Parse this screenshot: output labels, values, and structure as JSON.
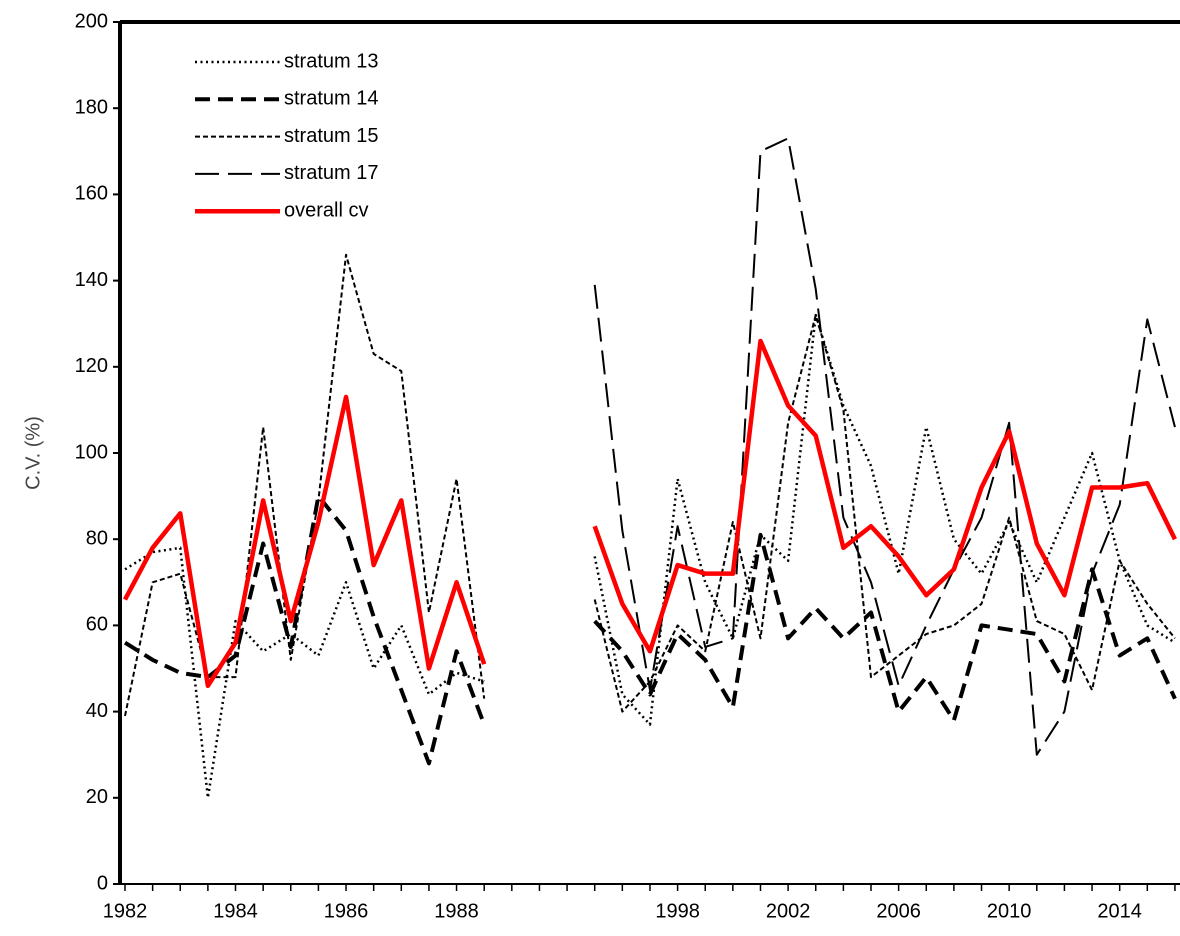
{
  "chart_data": {
    "type": "line",
    "y_label": "C.V. (%)",
    "categories": [
      "1982",
      null,
      null,
      null,
      "1984",
      null,
      null,
      null,
      "1986",
      null,
      null,
      null,
      "1988",
      null,
      null,
      null,
      null,
      null,
      null,
      null,
      "1998",
      null,
      null,
      null,
      "2002",
      null,
      null,
      null,
      "2006",
      null,
      null,
      null,
      "2010",
      null,
      null,
      null,
      "2014",
      null,
      null
    ],
    "series": [
      {
        "name": "stratum 13",
        "color": "#000000",
        "dash": "dotted",
        "values": [
          73,
          77,
          78,
          20,
          61,
          54,
          58,
          53,
          70,
          50,
          60,
          44,
          49,
          47,
          null,
          null,
          null,
          76,
          44,
          37,
          94,
          70,
          57,
          81,
          75,
          132,
          111,
          97,
          72,
          106,
          80,
          72,
          84,
          70,
          85,
          100,
          75,
          60,
          56
        ]
      },
      {
        "name": "stratum 14",
        "color": "#000000",
        "dash": "heavy",
        "values": [
          56,
          52,
          49,
          48,
          53,
          79,
          55,
          90,
          82,
          62,
          45,
          28,
          54,
          37,
          null,
          null,
          null,
          61,
          54,
          44,
          58,
          52,
          41,
          81,
          57,
          64,
          57,
          63,
          40,
          48,
          38,
          60,
          59,
          58,
          47,
          73,
          53,
          57,
          43
        ]
      },
      {
        "name": "stratum 15",
        "color": "#000000",
        "dash": "short",
        "values": [
          39,
          70,
          72,
          48,
          48,
          106,
          52,
          89,
          146,
          123,
          119,
          63,
          94,
          43,
          null,
          null,
          null,
          66,
          40,
          47,
          60,
          54,
          84,
          57,
          107,
          132,
          110,
          48,
          53,
          58,
          60,
          65,
          85,
          61,
          58,
          45,
          75,
          65,
          57
        ]
      },
      {
        "name": "stratum 17",
        "color": "#000000",
        "dash": "long",
        "values": [
          null,
          null,
          null,
          null,
          null,
          null,
          null,
          null,
          null,
          null,
          null,
          null,
          null,
          null,
          null,
          null,
          null,
          139,
          82,
          45,
          83,
          55,
          57,
          170,
          173,
          138,
          85,
          70,
          46,
          60,
          73,
          85,
          107,
          30,
          40,
          72,
          88,
          131,
          106
        ]
      },
      {
        "name": "overall cv",
        "color": "#ff0000",
        "dash": "solid",
        "values": [
          66,
          78,
          86,
          46,
          56,
          89,
          61,
          84,
          113,
          74,
          89,
          50,
          70,
          51,
          null,
          null,
          null,
          83,
          65,
          54,
          74,
          72,
          72,
          126,
          111,
          104,
          78,
          83,
          76,
          67,
          73,
          92,
          105,
          79,
          67,
          92,
          92,
          93,
          80
        ]
      }
    ],
    "ylim": [
      0,
      200
    ],
    "yticks": [
      0,
      20,
      40,
      60,
      80,
      100,
      120,
      140,
      160,
      180,
      200
    ],
    "legend": "top-left"
  }
}
